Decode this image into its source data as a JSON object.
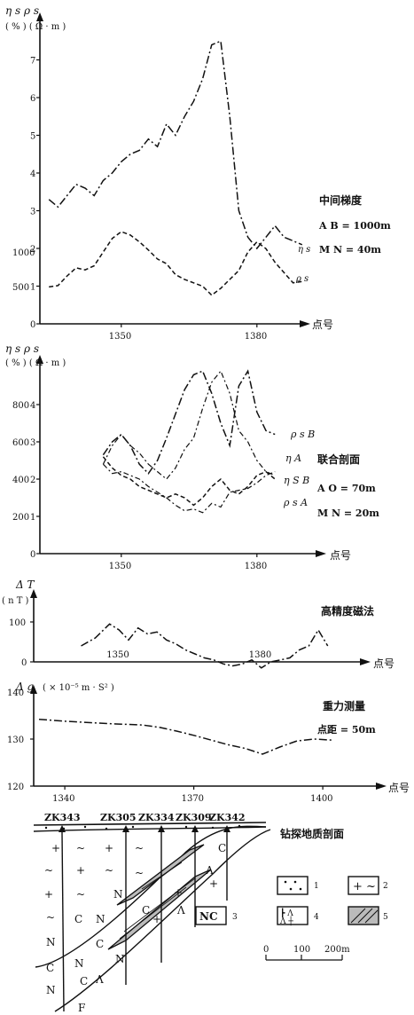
{
  "panels": {
    "p1": {
      "ylabel_top": "η s  ρ s",
      "yunits": "( % ) ( Ω · m )",
      "yticks": [
        "7",
        "6",
        "5",
        "4",
        "3",
        "2",
        "1",
        "0"
      ],
      "rho_ticks": [
        "1000",
        "500"
      ],
      "xticks": [
        "1350",
        "1380"
      ],
      "xname": "点号",
      "method": "中间梯度",
      "param1": "A B = 1000m",
      "param2": "M N = 40m",
      "curve_eta": "η s",
      "curve_rho": "ρ s"
    },
    "p2": {
      "ylabel_top": "η s  ρ s",
      "yunits": "( % ) ( Ω · m )",
      "yticks": [
        "4",
        "3",
        "2",
        "1",
        "0"
      ],
      "rho_ticks": [
        "800",
        "600",
        "400",
        "200"
      ],
      "xticks": [
        "1350",
        "1380"
      ],
      "xname": "点号",
      "method": "联合剖面",
      "param1": "A O = 70m",
      "param2": "M N = 20m",
      "curve_rhoB": "ρ s B",
      "curve_etaA": "η A",
      "curve_etaB": "η S B",
      "curve_rhoA": "ρ s A"
    },
    "p3": {
      "ylabel": "Δ T",
      "yunits": "( n T )",
      "yticks": [
        "100",
        "0"
      ],
      "xticks": [
        "1350",
        "1380"
      ],
      "xname": "点号",
      "method": "高精度磁法"
    },
    "p4": {
      "ylabel": "Δ g",
      "yunits": "( × 10⁻⁵ m · S² )",
      "yticks": [
        "140",
        "130",
        "120"
      ],
      "xticks": [
        "1340",
        "1370",
        "1400"
      ],
      "xname": "点号",
      "method": "重力测量",
      "param1": "点距 = 50m"
    },
    "section": {
      "title": "钻探地质剖面",
      "holes": [
        "ZK343",
        "ZK305",
        "ZK334",
        "ZK309",
        "ZK342"
      ],
      "legend": [
        "1",
        "2",
        "3",
        "4",
        "5"
      ],
      "scale": [
        "0",
        "100",
        "200m"
      ]
    }
  },
  "chart_data": [
    {
      "type": "line",
      "title": "",
      "xlabel": "点号",
      "ylabel": "η s ρ s",
      "xlim": [
        1332,
        1392
      ],
      "ylim": [
        0,
        8
      ],
      "series": [
        {
          "name": "η s",
          "x": [
            1334,
            1336,
            1338,
            1340,
            1342,
            1344,
            1346,
            1348,
            1350,
            1352,
            1354,
            1356,
            1358,
            1360,
            1362,
            1364,
            1366,
            1368,
            1370,
            1372,
            1374,
            1376,
            1378,
            1380,
            1382,
            1384,
            1386,
            1388,
            1390
          ],
          "values": [
            3.3,
            3.1,
            3.4,
            3.7,
            3.6,
            3.4,
            3.8,
            4.0,
            4.3,
            4.5,
            4.6,
            4.9,
            4.7,
            5.3,
            5.0,
            5.5,
            5.9,
            6.5,
            7.4,
            7.5,
            5.5,
            3.0,
            2.3,
            2.0,
            2.3,
            2.6,
            2.3,
            2.2,
            2.1
          ]
        },
        {
          "name": "ρ s",
          "x": [
            1334,
            1336,
            1338,
            1340,
            1342,
            1344,
            1346,
            1348,
            1350,
            1352,
            1354,
            1356,
            1358,
            1360,
            1362,
            1364,
            1366,
            1368,
            1370,
            1372,
            1374,
            1376,
            1378,
            1380,
            1382,
            1384,
            1386,
            1388,
            1390
          ],
          "values": [
            540,
            560,
            700,
            820,
            790,
            850,
            1050,
            1250,
            1350,
            1300,
            1200,
            1080,
            950,
            880,
            720,
            650,
            600,
            550,
            420,
            520,
            650,
            780,
            1050,
            1200,
            1100,
            900,
            750,
            600,
            620
          ]
        }
      ]
    },
    {
      "type": "line",
      "title": "",
      "xlabel": "点号",
      "ylabel": "η s ρ s",
      "xlim": [
        1332,
        1392
      ],
      "ylim": [
        0,
        5
      ],
      "series": [
        {
          "name": "ρ s B",
          "x": [
            1346,
            1348,
            1350,
            1352,
            1354,
            1356,
            1358,
            1360,
            1362,
            1364,
            1366,
            1368,
            1370,
            1372,
            1374,
            1376,
            1378,
            1380,
            1382,
            1384
          ],
          "values": [
            530,
            600,
            640,
            580,
            480,
            430,
            500,
            620,
            750,
            880,
            960,
            980,
            860,
            700,
            580,
            900,
            980,
            760,
            660,
            640
          ]
        },
        {
          "name": "η A",
          "x": [
            1346,
            1348,
            1350,
            1352,
            1354,
            1356,
            1358,
            1360,
            1362,
            1364,
            1366,
            1368,
            1370,
            1372,
            1374,
            1376,
            1378,
            1380,
            1382,
            1384
          ],
          "values": [
            2.4,
            2.9,
            3.2,
            2.9,
            2.7,
            2.4,
            2.2,
            2.0,
            2.3,
            2.8,
            3.1,
            3.9,
            4.6,
            4.9,
            4.3,
            3.3,
            3.0,
            2.5,
            2.2,
            2.1
          ]
        },
        {
          "name": "η S B",
          "x": [
            1346,
            1348,
            1350,
            1352,
            1354,
            1356,
            1358,
            1360,
            1362,
            1364,
            1366,
            1368,
            1370,
            1372,
            1374,
            1376,
            1378,
            1380,
            1382,
            1384
          ],
          "values": [
            2.6,
            2.3,
            2.1,
            2.0,
            1.8,
            1.7,
            1.6,
            1.5,
            1.6,
            1.5,
            1.3,
            1.5,
            1.8,
            2.0,
            1.7,
            1.6,
            1.8,
            2.1,
            2.2,
            2.0
          ]
        },
        {
          "name": "ρ s A",
          "x": [
            1346,
            1348,
            1350,
            1352,
            1354,
            1356,
            1358,
            1360,
            1362,
            1364,
            1366,
            1368,
            1370,
            1372,
            1374,
            1376,
            1378,
            1380,
            1382,
            1384
          ],
          "values": [
            480,
            430,
            440,
            420,
            400,
            360,
            330,
            300,
            260,
            230,
            240,
            220,
            270,
            250,
            330,
            340,
            350,
            380,
            420,
            440
          ]
        }
      ]
    },
    {
      "type": "line",
      "title": "",
      "xlabel": "点号",
      "ylabel": "Δ T",
      "xlim": [
        1332,
        1392
      ],
      "ylim": [
        -20,
        140
      ],
      "series": [
        {
          "name": "",
          "x": [
            1342,
            1345,
            1348,
            1350,
            1352,
            1354,
            1356,
            1358,
            1360,
            1362,
            1364,
            1366,
            1368,
            1370,
            1372,
            1374,
            1376,
            1378,
            1380,
            1382,
            1384,
            1386,
            1388,
            1390,
            1392,
            1394
          ],
          "values": [
            40,
            60,
            95,
            80,
            55,
            85,
            70,
            75,
            55,
            45,
            30,
            20,
            10,
            5,
            -5,
            -10,
            -5,
            5,
            -15,
            0,
            5,
            10,
            30,
            40,
            80,
            40
          ]
        }
      ]
    },
    {
      "type": "line",
      "title": "",
      "xlabel": "点号",
      "ylabel": "Δ g",
      "xlim": [
        1334,
        1410
      ],
      "ylim": [
        120,
        145
      ],
      "series": [
        {
          "name": "",
          "x": [
            1334,
            1340,
            1346,
            1352,
            1358,
            1362,
            1366,
            1370,
            1374,
            1378,
            1382,
            1386,
            1390,
            1394,
            1398,
            1402
          ],
          "values": [
            134.2,
            133.8,
            133.5,
            133.2,
            133.0,
            132.5,
            131.7,
            130.8,
            129.8,
            128.8,
            128.0,
            126.8,
            128.3,
            129.6,
            130.0,
            129.8
          ]
        }
      ]
    }
  ]
}
